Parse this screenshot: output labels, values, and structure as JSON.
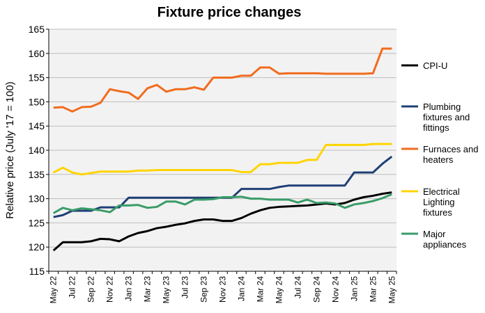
{
  "chart_data": {
    "type": "line",
    "title": "Fixture price changes",
    "xlabel": "",
    "ylabel": "Relative price (July '17 = 100)",
    "ylim": [
      115,
      165
    ],
    "yticks": [
      115,
      120,
      125,
      130,
      135,
      140,
      145,
      150,
      155,
      160,
      165
    ],
    "grid": true,
    "legend_position": "right",
    "x": [
      "May 22",
      "Jun 22",
      "Jul 22",
      "Aug 22",
      "Sep 22",
      "Oct 22",
      "Nov 22",
      "Dec 22",
      "Jan 23",
      "Feb 23",
      "Mar 23",
      "Apr 23",
      "May 23",
      "Jun 23",
      "Jul 23",
      "Aug 23",
      "Sep 23",
      "Oct 23",
      "Nov 23",
      "Dec 23",
      "Jan 24",
      "Feb 24",
      "Mar 24",
      "Apr 24",
      "May 24",
      "Jun 24",
      "Jul 24",
      "Aug 24",
      "Sep 24",
      "Oct 24",
      "Nov 24",
      "Dec 24",
      "Jan 25",
      "Feb 25",
      "Mar 25",
      "Apr 25",
      "May 25"
    ],
    "xtick_labels": [
      "May 22",
      "Jul 22",
      "Sep 22",
      "Nov 22",
      "Jan 23",
      "Mar 23",
      "May 23",
      "Jul 23",
      "Sep 23",
      "Nov 23",
      "Jan 24",
      "Mar 24",
      "May 24",
      "Jul 24",
      "Sep 24",
      "Nov 24",
      "Jan 25",
      "Mar 25",
      "May 25"
    ],
    "series": [
      {
        "name": "CPI-U",
        "color": "#000000",
        "values": [
          119.3,
          121.0,
          121.0,
          121.0,
          121.2,
          121.7,
          121.6,
          121.2,
          122.2,
          122.9,
          123.3,
          123.9,
          124.2,
          124.6,
          124.9,
          125.4,
          125.7,
          125.7,
          125.4,
          125.4,
          126.0,
          126.9,
          127.6,
          128.1,
          128.3,
          128.4,
          128.5,
          128.6,
          128.8,
          129.0,
          128.8,
          129.1,
          129.8,
          130.3,
          130.6,
          131.0,
          131.3
        ]
      },
      {
        "name": "Plumbing fixtures and fittings",
        "color": "#1f3f75",
        "values": [
          126.2,
          126.6,
          127.5,
          127.5,
          127.5,
          128.2,
          128.2,
          128.2,
          130.2,
          130.2,
          130.2,
          130.2,
          130.2,
          130.2,
          130.2,
          130.2,
          130.2,
          130.2,
          130.2,
          130.2,
          132.0,
          132.0,
          132.0,
          132.0,
          132.4,
          132.7,
          132.7,
          132.7,
          132.7,
          132.7,
          132.7,
          132.7,
          135.4,
          135.4,
          135.4,
          137.2,
          138.7
        ]
      },
      {
        "name": "Furnaces and heaters",
        "color": "#f26b1d",
        "values": [
          148.8,
          148.9,
          148.0,
          148.9,
          149.0,
          149.8,
          152.6,
          152.2,
          151.9,
          150.6,
          152.8,
          153.5,
          152.1,
          152.6,
          152.6,
          153.0,
          152.5,
          155.0,
          155.0,
          155.0,
          155.4,
          155.4,
          157.1,
          157.1,
          155.8,
          155.9,
          155.9,
          155.9,
          155.9,
          155.8,
          155.8,
          155.8,
          155.8,
          155.8,
          155.9,
          161.0,
          161.0
        ]
      },
      {
        "name": "Electrical Lighting fixtures",
        "color": "#ffd400",
        "values": [
          135.4,
          136.4,
          135.4,
          135.0,
          135.3,
          135.6,
          135.6,
          135.6,
          135.6,
          135.8,
          135.8,
          135.9,
          135.9,
          135.9,
          135.9,
          135.9,
          135.9,
          135.9,
          135.9,
          135.9,
          135.5,
          135.5,
          137.1,
          137.1,
          137.4,
          137.4,
          137.4,
          138.0,
          138.0,
          141.1,
          141.1,
          141.1,
          141.1,
          141.1,
          141.3,
          141.3,
          141.3
        ]
      },
      {
        "name": "Major appliances",
        "color": "#3a9c68",
        "values": [
          127.0,
          128.1,
          127.6,
          128.0,
          127.8,
          127.6,
          127.2,
          128.6,
          128.6,
          128.7,
          128.1,
          128.3,
          129.4,
          129.4,
          128.8,
          129.8,
          129.8,
          129.9,
          130.3,
          130.3,
          130.4,
          130.0,
          130.0,
          129.8,
          129.8,
          129.8,
          129.2,
          129.8,
          129.1,
          129.2,
          129.0,
          128.1,
          128.8,
          129.1,
          129.5,
          130.1,
          130.9
        ]
      }
    ]
  }
}
